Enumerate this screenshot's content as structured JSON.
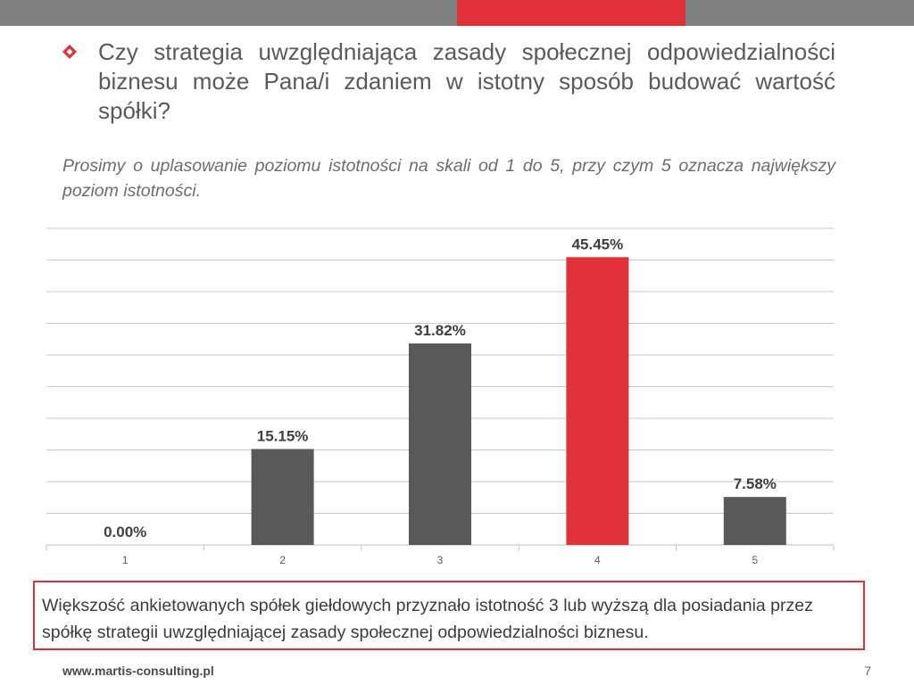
{
  "header": {
    "question": "Czy strategia uwzględniająca zasady społecznej odpowiedzialności biznesu może Pana/i zdaniem  w istotny sposób budować wartość spółki?",
    "instruction": "Prosimy o uplasowanie poziomu istotności na skali od 1 do 5, przy czym 5 oznacza największy poziom istotności."
  },
  "chart_data": {
    "type": "bar",
    "categories": [
      "1",
      "2",
      "3",
      "4",
      "5"
    ],
    "values": [
      0.0,
      15.15,
      31.82,
      45.45,
      7.58
    ],
    "value_labels": [
      "0.00%",
      "15.15%",
      "31.82%",
      "45.45%",
      "7.58%"
    ],
    "bar_colors": [
      "#595959",
      "#595959",
      "#595959",
      "#e0303a",
      "#595959"
    ],
    "title": "",
    "xlabel": "",
    "ylabel": "",
    "ylim": [
      0,
      50
    ],
    "grid": true,
    "legend": "none"
  },
  "summary": {
    "text": "Większość ankietowanych spółek giełdowych przyznało istotność 3 lub wyższą dla posiadania przez spółkę strategii uwzględniającej zasady społecznej odpowiedzialności biznesu."
  },
  "footer": {
    "url": "www.martis-consulting.pl",
    "page": "7"
  },
  "colors": {
    "accent": "#e0303a",
    "bar": "#595959",
    "topbar": "#7f8081",
    "grid": "#c8c8c8"
  }
}
